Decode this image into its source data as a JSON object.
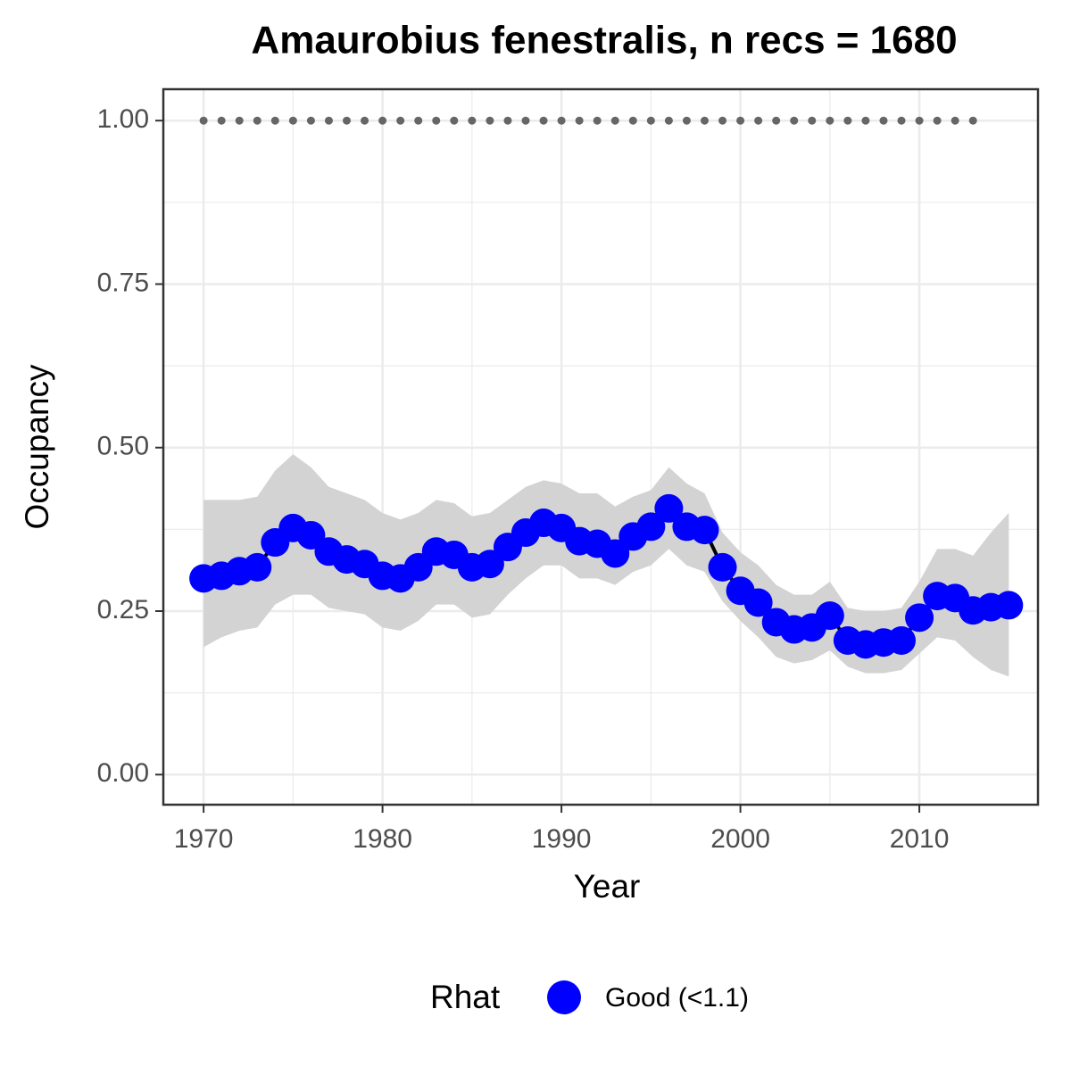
{
  "chart_data": {
    "type": "line",
    "title": "Amaurobius fenestralis, n recs = 1680",
    "x_label": "Year",
    "y_label": "Occupancy",
    "legend_title": "Rhat",
    "x": [
      1970,
      1971,
      1972,
      1973,
      1974,
      1975,
      1976,
      1977,
      1978,
      1979,
      1980,
      1981,
      1982,
      1983,
      1984,
      1985,
      1986,
      1987,
      1988,
      1989,
      1990,
      1991,
      1992,
      1993,
      1994,
      1995,
      1996,
      1997,
      1998,
      1999,
      2000,
      2001,
      2002,
      2003,
      2004,
      2005,
      2006,
      2007,
      2008,
      2009,
      2010,
      2011,
      2012,
      2013,
      2014,
      2015
    ],
    "series": [
      {
        "name": "Good (<1.1)",
        "color": "#0000ff",
        "line_color": "#000000",
        "band_color": "#d3d3d3",
        "values": [
          0.3,
          0.304,
          0.311,
          0.317,
          0.355,
          0.377,
          0.366,
          0.341,
          0.329,
          0.322,
          0.304,
          0.3,
          0.317,
          0.341,
          0.336,
          0.317,
          0.322,
          0.348,
          0.37,
          0.385,
          0.377,
          0.357,
          0.353,
          0.338,
          0.364,
          0.379,
          0.407,
          0.379,
          0.374,
          0.317,
          0.281,
          0.263,
          0.233,
          0.222,
          0.225,
          0.243,
          0.205,
          0.199,
          0.202,
          0.205,
          0.24,
          0.273,
          0.27,
          0.251,
          0.256,
          0.259
        ],
        "upper": [
          0.42,
          0.42,
          0.42,
          0.425,
          0.465,
          0.49,
          0.47,
          0.44,
          0.43,
          0.42,
          0.4,
          0.39,
          0.4,
          0.42,
          0.415,
          0.395,
          0.4,
          0.42,
          0.44,
          0.45,
          0.445,
          0.43,
          0.43,
          0.41,
          0.425,
          0.435,
          0.47,
          0.445,
          0.43,
          0.37,
          0.34,
          0.32,
          0.29,
          0.275,
          0.275,
          0.295,
          0.255,
          0.25,
          0.25,
          0.255,
          0.295,
          0.345,
          0.345,
          0.335,
          0.37,
          0.4
        ],
        "lower": [
          0.195,
          0.21,
          0.22,
          0.225,
          0.26,
          0.275,
          0.275,
          0.255,
          0.25,
          0.245,
          0.225,
          0.22,
          0.235,
          0.26,
          0.26,
          0.24,
          0.245,
          0.275,
          0.3,
          0.32,
          0.32,
          0.3,
          0.3,
          0.29,
          0.31,
          0.32,
          0.345,
          0.32,
          0.31,
          0.265,
          0.235,
          0.21,
          0.18,
          0.17,
          0.175,
          0.19,
          0.165,
          0.155,
          0.155,
          0.16,
          0.185,
          0.21,
          0.205,
          0.18,
          0.16,
          0.15
        ]
      },
      {
        "color": "#666666",
        "style": "dotted",
        "values": [
          1,
          1,
          1,
          1,
          1,
          1,
          1,
          1,
          1,
          1,
          1,
          1,
          1,
          1,
          1,
          1,
          1,
          1,
          1,
          1,
          1,
          1,
          1,
          1,
          1,
          1,
          1,
          1,
          1,
          1,
          1,
          1,
          1,
          1,
          1,
          1,
          1,
          1,
          1,
          1,
          1,
          1,
          1,
          1,
          null,
          null
        ]
      }
    ],
    "xlim": [
      1967.75,
      2016.63
    ],
    "xticks": [
      1970,
      1980,
      1990,
      2000,
      2010
    ],
    "ylim": [
      -0.046,
      1.048
    ],
    "yticks": [
      {
        "value": 0,
        "label": "0.00"
      },
      {
        "value": 0.25,
        "label": "0.25"
      },
      {
        "value": 0.5,
        "label": "0.50"
      },
      {
        "value": 0.75,
        "label": "0.75"
      },
      {
        "value": 1,
        "label": "1.00"
      }
    ],
    "grid": true,
    "legend": "bottom"
  }
}
